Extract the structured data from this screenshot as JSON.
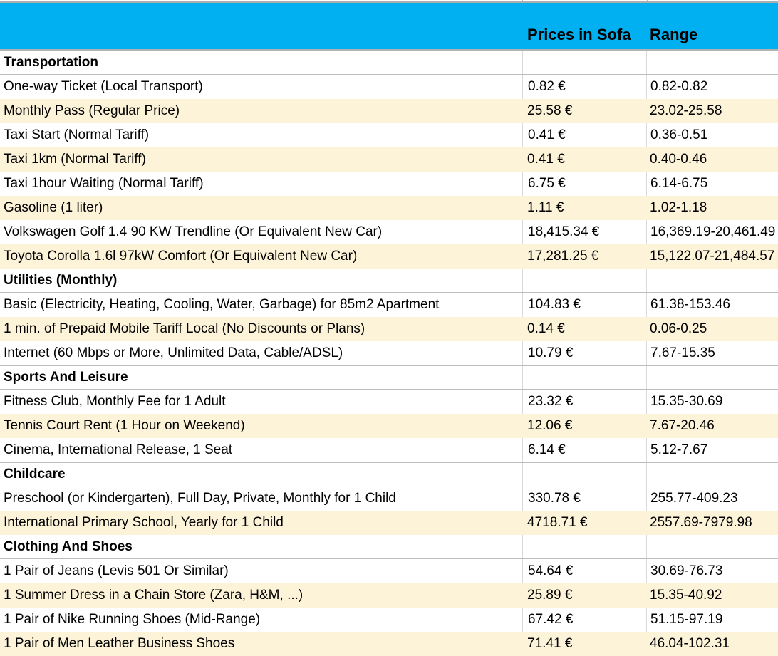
{
  "colors": {
    "band": "#00B0F0",
    "stripe": "#FCF3D8",
    "gridline": "#D9D9D9",
    "section_line": "#BDBDBD"
  },
  "header": {
    "price_col": "Prices in Sofa",
    "range_col": "Range"
  },
  "table": {
    "rows": [
      {
        "type": "section",
        "label": "Transportation",
        "price": "",
        "range": ""
      },
      {
        "type": "item",
        "label": "One-way Ticket (Local Transport)",
        "price": "0.82 €",
        "range": "0.82-0.82"
      },
      {
        "type": "item",
        "label": "Monthly Pass (Regular Price)",
        "price": "25.58 €",
        "range": "23.02-25.58"
      },
      {
        "type": "item",
        "label": "Taxi Start (Normal Tariff)",
        "price": "0.41 €",
        "range": "0.36-0.51"
      },
      {
        "type": "item",
        "label": "Taxi 1km (Normal Tariff)",
        "price": "0.41 €",
        "range": "0.40-0.46"
      },
      {
        "type": "item",
        "label": "Taxi 1hour Waiting (Normal Tariff)",
        "price": "6.75 €",
        "range": "6.14-6.75"
      },
      {
        "type": "item",
        "label": "Gasoline (1 liter)",
        "price": "1.11 €",
        "range": "1.02-1.18"
      },
      {
        "type": "item",
        "label": "Volkswagen Golf 1.4 90 KW Trendline (Or Equivalent New Car)",
        "price": "18,415.34 €",
        "range": "16,369.19-20,461.49"
      },
      {
        "type": "item",
        "label": "Toyota Corolla 1.6l 97kW Comfort (Or Equivalent New Car)",
        "price": "17,281.25 €",
        "range": "15,122.07-21,484.57"
      },
      {
        "type": "section",
        "label": "Utilities (Monthly)",
        "price": "",
        "range": ""
      },
      {
        "type": "item",
        "label": "Basic (Electricity, Heating, Cooling, Water, Garbage) for 85m2 Apartment",
        "price": "104.83 €",
        "range": "61.38-153.46"
      },
      {
        "type": "item",
        "label": "1 min. of Prepaid Mobile Tariff Local (No Discounts or Plans)",
        "price": "0.14 €",
        "range": "0.06-0.25"
      },
      {
        "type": "item",
        "label": "Internet (60 Mbps or More, Unlimited Data, Cable/ADSL)",
        "price": "10.79 €",
        "range": "7.67-15.35"
      },
      {
        "type": "section",
        "label": "Sports And Leisure",
        "price": "",
        "range": ""
      },
      {
        "type": "item",
        "label": "Fitness Club, Monthly Fee for 1 Adult",
        "price": "23.32 €",
        "range": "15.35-30.69"
      },
      {
        "type": "item",
        "label": "Tennis Court Rent (1 Hour on Weekend)",
        "price": "12.06 €",
        "range": "7.67-20.46"
      },
      {
        "type": "item",
        "label": "Cinema, International Release, 1 Seat",
        "price": "6.14 €",
        "range": "5.12-7.67"
      },
      {
        "type": "section",
        "label": "Childcare",
        "price": "",
        "range": ""
      },
      {
        "type": "item",
        "label": "Preschool (or Kindergarten), Full Day, Private, Monthly for 1 Child",
        "price": "330.78 €",
        "range": "255.77-409.23"
      },
      {
        "type": "item",
        "label": "International Primary School, Yearly for 1 Child",
        "price": "4718.71 €",
        "range": "2557.69-7979.98"
      },
      {
        "type": "section",
        "label": "Clothing And Shoes",
        "price": "",
        "range": ""
      },
      {
        "type": "item",
        "label": "1 Pair of Jeans (Levis 501 Or Similar)",
        "price": "54.64 €",
        "range": "30.69-76.73"
      },
      {
        "type": "item",
        "label": "1 Summer Dress in a Chain Store (Zara, H&M, ...)",
        "price": "25.89 €",
        "range": "15.35-40.92"
      },
      {
        "type": "item",
        "label": "1 Pair of Nike Running Shoes (Mid-Range)",
        "price": "67.42 €",
        "range": "51.15-97.19"
      },
      {
        "type": "item",
        "label": "1 Pair of Men Leather Business Shoes",
        "price": "71.41 €",
        "range": "46.04-102.31"
      }
    ]
  }
}
